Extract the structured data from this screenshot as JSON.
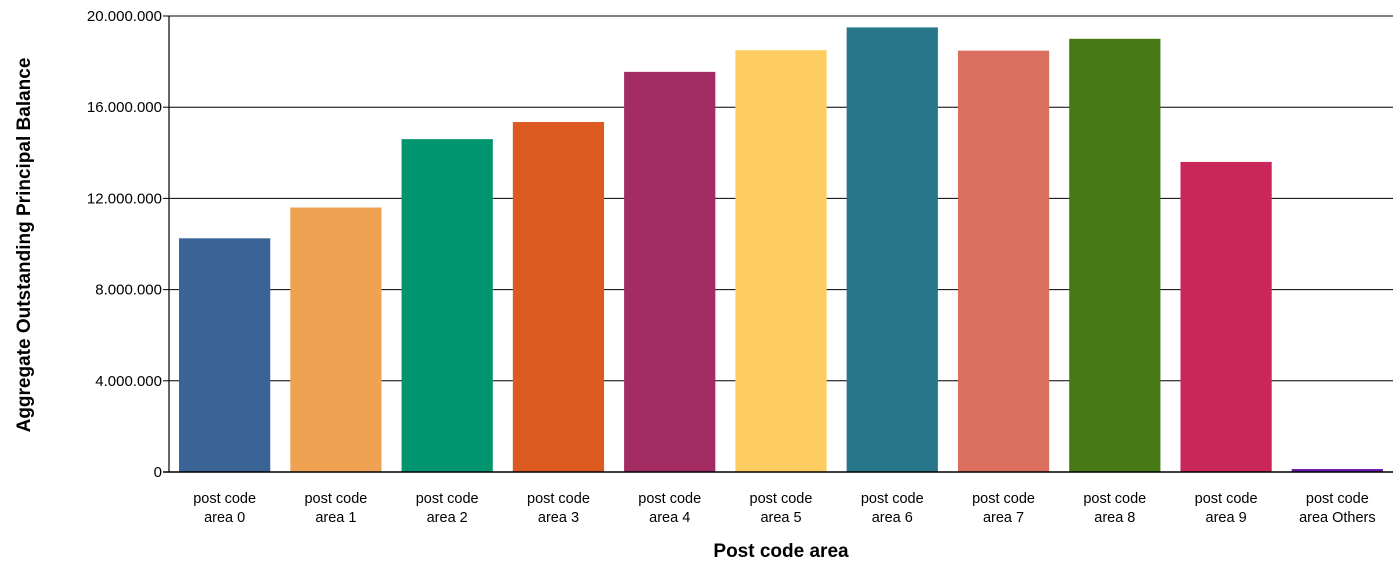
{
  "chart_data": {
    "type": "bar",
    "title": "",
    "xlabel": "Post code area",
    "ylabel": "Aggregate Outstanding Principal Balance",
    "categories": [
      [
        "post code",
        "area 0"
      ],
      [
        "post code",
        "area 1"
      ],
      [
        "post code",
        "area 2"
      ],
      [
        "post code",
        "area 3"
      ],
      [
        "post code",
        "area 4"
      ],
      [
        "post code",
        "area 5"
      ],
      [
        "post code",
        "area 6"
      ],
      [
        "post code",
        "area 7"
      ],
      [
        "post code",
        "area 8"
      ],
      [
        "post code",
        "area 9"
      ],
      [
        "post code",
        "area Others"
      ]
    ],
    "values": [
      10250000,
      11600000,
      14600000,
      15350000,
      17550000,
      18500000,
      19500000,
      18480000,
      19000000,
      13600000,
      130000
    ],
    "colors": [
      "#3A6496",
      "#EFA352",
      "#00956E",
      "#DC591F",
      "#A32C62",
      "#FECD62",
      "#27768A",
      "#DB7061",
      "#467914",
      "#C92659",
      "#6A1AAB"
    ],
    "ylim": [
      0,
      20000000
    ],
    "yticks": [
      {
        "value": 0,
        "label": "0"
      },
      {
        "value": 4000000,
        "label": "4.000.000"
      },
      {
        "value": 8000000,
        "label": "8.000.000"
      },
      {
        "value": 12000000,
        "label": "12.000.000"
      },
      {
        "value": 16000000,
        "label": "16.000.000"
      },
      {
        "value": 20000000,
        "label": "20.000.000"
      }
    ],
    "grid": true,
    "legend": "none"
  }
}
